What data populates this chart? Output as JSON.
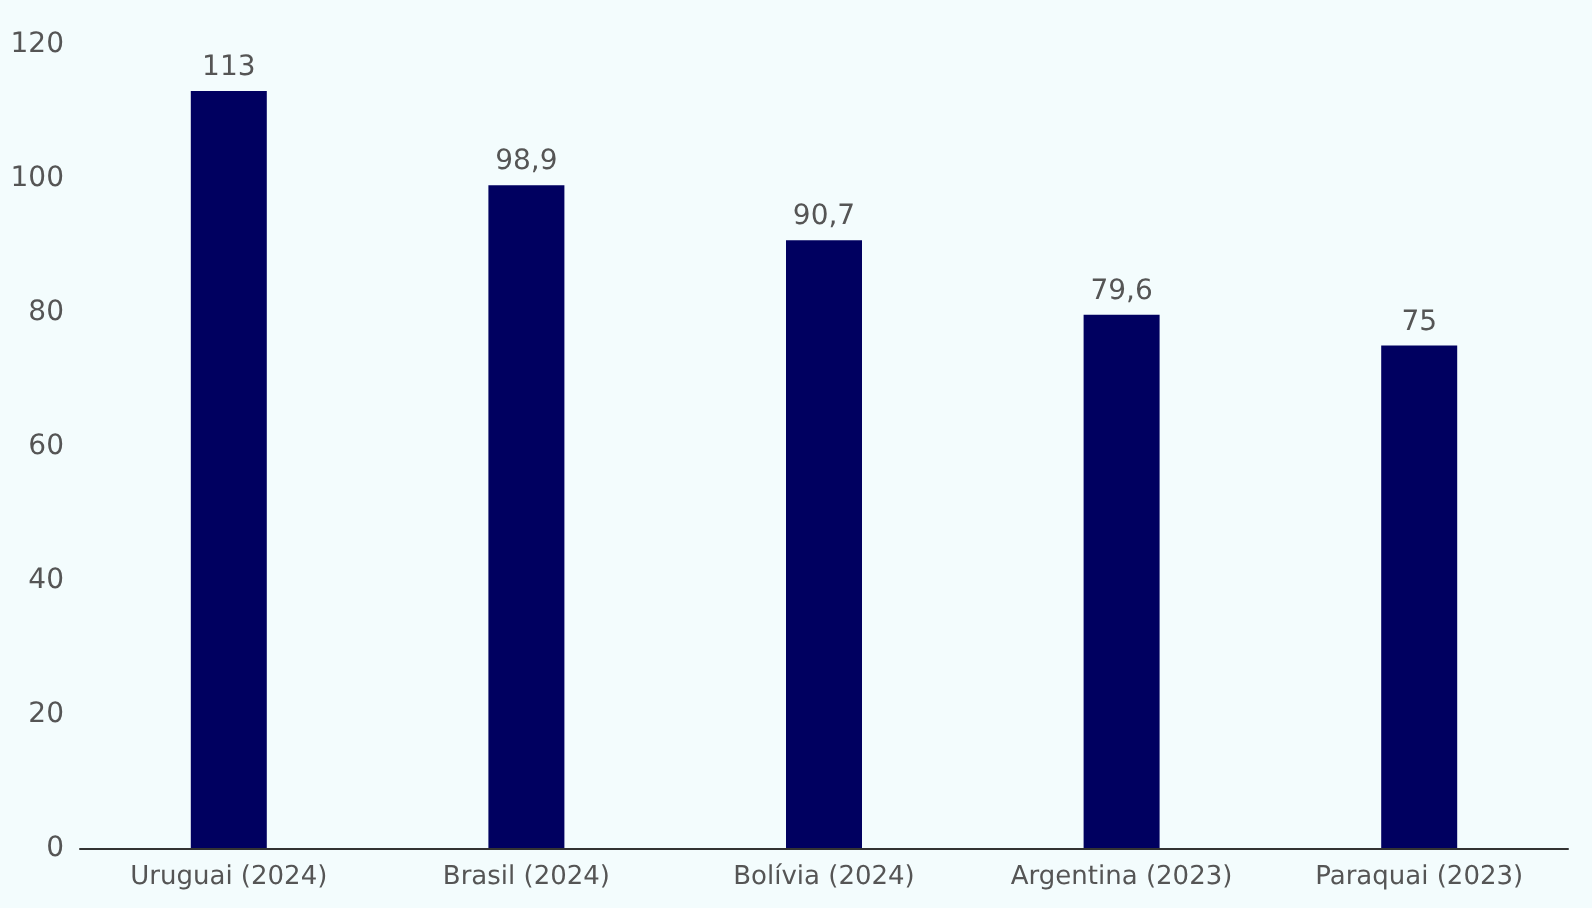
{
  "chart_data": {
    "type": "bar",
    "categories": [
      "Uruguai (2024)",
      "Brasil (2024)",
      "Bolívia (2024)",
      "Argentina (2023)",
      "Paraquai (2023)"
    ],
    "values": [
      113,
      98.9,
      90.7,
      79.6,
      75
    ],
    "value_labels": [
      "113",
      "98,9",
      "90,7",
      "79,6",
      "75"
    ],
    "color": "#000060",
    "ylim": [
      0,
      120
    ],
    "yticks": [
      0,
      20,
      40,
      60,
      80,
      100,
      120
    ],
    "grid": false
  }
}
